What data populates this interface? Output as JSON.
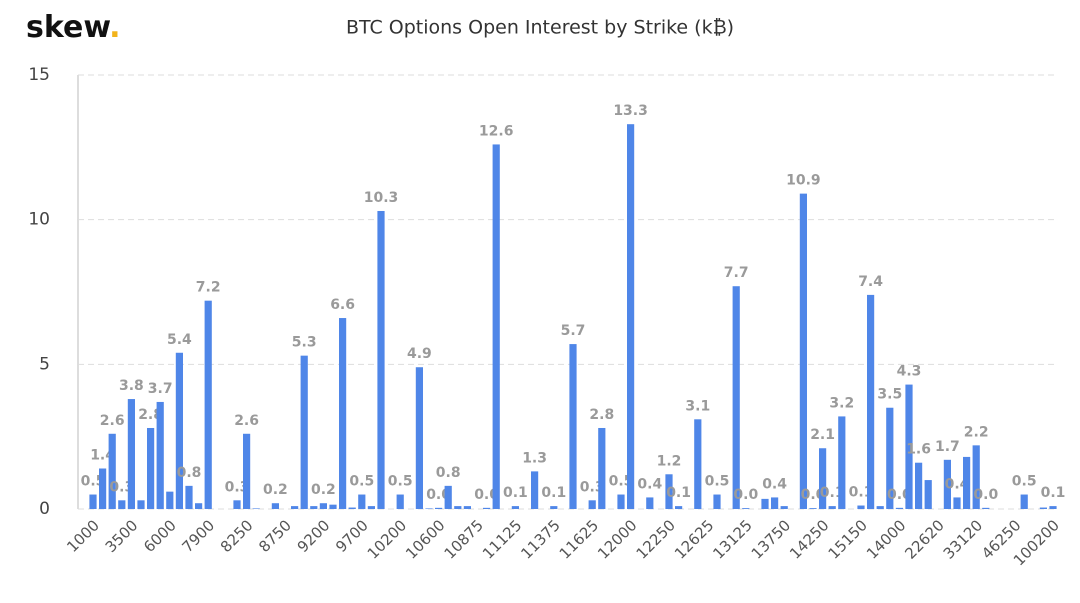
{
  "logo": {
    "name": "skew",
    "dot": "."
  },
  "chart_data": {
    "type": "bar",
    "title": "BTC Options Open Interest by Strike (k₿)",
    "color": "#4f86e8",
    "grid": true,
    "ylim": [
      0,
      15
    ],
    "yticks": [
      0,
      5,
      10,
      15
    ],
    "categories": [
      "1000",
      null,
      null,
      null,
      "3500",
      null,
      null,
      null,
      "6000",
      null,
      null,
      null,
      "7900",
      null,
      null,
      null,
      "8250",
      null,
      null,
      null,
      "8750",
      null,
      null,
      null,
      "9200",
      null,
      null,
      null,
      "9700",
      null,
      null,
      null,
      "10200",
      null,
      null,
      null,
      "10600",
      null,
      null,
      null,
      "10875",
      null,
      null,
      null,
      "11125",
      null,
      null,
      null,
      "11375",
      null,
      null,
      null,
      "11625",
      null,
      null,
      null,
      "12000",
      null,
      null,
      null,
      "12250",
      null,
      null,
      null,
      "12625",
      null,
      null,
      null,
      "13125",
      null,
      null,
      null,
      "13750",
      null,
      null,
      null,
      "14250",
      null,
      null,
      null,
      "15150",
      null,
      null,
      null,
      "14000",
      null,
      null,
      null,
      "22620",
      null,
      null,
      null,
      "33120",
      null,
      null,
      null,
      "46250",
      null,
      null,
      null,
      "100200"
    ],
    "values": [
      0.5,
      1.4,
      2.6,
      0.3,
      3.8,
      0.3,
      2.8,
      3.7,
      0.6,
      5.4,
      0.8,
      0.2,
      7.2,
      0,
      0,
      0.3,
      2.6,
      0.02,
      0,
      0.2,
      0,
      0.1,
      5.3,
      0.1,
      0.2,
      0.15,
      6.6,
      0.05,
      0.5,
      0.1,
      10.3,
      0,
      0.5,
      0,
      4.9,
      0.02,
      0.04,
      0.8,
      0.1,
      0.1,
      0,
      0.04,
      12.6,
      0,
      0.1,
      0,
      1.3,
      0,
      0.1,
      0,
      5.7,
      0,
      0.3,
      2.8,
      0,
      0.5,
      13.3,
      0,
      0.4,
      0,
      1.2,
      0.1,
      0,
      3.1,
      0,
      0.5,
      0,
      7.7,
      0.03,
      0,
      0.35,
      0.4,
      0.1,
      0,
      10.9,
      0.03,
      2.1,
      0.1,
      3.2,
      0,
      0.12,
      7.4,
      0.1,
      3.5,
      0.04,
      4.3,
      1.6,
      1.0,
      0,
      1.7,
      0.4,
      1.8,
      2.2,
      0.04,
      0,
      0,
      0,
      0.5,
      0,
      0.05,
      0.1
    ],
    "value_labels": [
      "0.5",
      "1.4",
      "2.6",
      "0.3",
      "3.8",
      null,
      "2.8",
      "3.7",
      null,
      "5.4",
      "0.8",
      null,
      "7.2",
      null,
      null,
      "0.3",
      "2.6",
      null,
      null,
      "0.2",
      null,
      null,
      "5.3",
      null,
      "0.2",
      null,
      "6.6",
      null,
      "0.5",
      null,
      "10.3",
      null,
      "0.5",
      null,
      "4.9",
      null,
      "0.0",
      "0.8",
      null,
      null,
      null,
      "0.0",
      "12.6",
      null,
      "0.1",
      null,
      "1.3",
      null,
      "0.1",
      null,
      "5.7",
      null,
      "0.3",
      "2.8",
      null,
      "0.5",
      "13.3",
      null,
      "0.4",
      null,
      "1.2",
      "0.1",
      null,
      "3.1",
      null,
      "0.5",
      null,
      "7.7",
      "0.0",
      null,
      null,
      "0.4",
      null,
      null,
      "10.9",
      "0.0",
      "2.1",
      "0.1",
      "3.2",
      null,
      "0.1",
      "7.4",
      null,
      "3.5",
      "0.0",
      "4.3",
      "1.6",
      null,
      null,
      "1.7",
      "0.4",
      null,
      "2.2",
      "0.0",
      null,
      null,
      null,
      "0.5",
      null,
      null,
      "0.1"
    ]
  }
}
